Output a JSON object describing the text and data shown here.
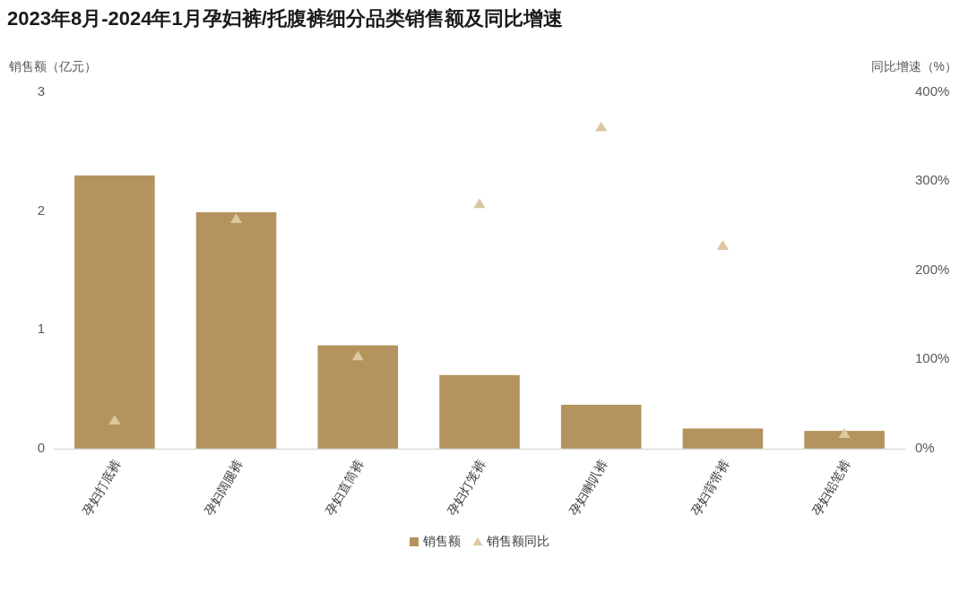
{
  "chart_data": {
    "type": "bar",
    "title": "2023年8月-2024年1月孕妇裤/托腹裤细分品类销售额及同比增速",
    "ylabel": "销售额（亿元）",
    "y2label": "同比增速（%）",
    "categories": [
      "孕妇打底裤",
      "孕妇阔腿裤",
      "孕妇直筒裤",
      "孕妇灯笼裤",
      "孕妇喇叭裤",
      "孕妇背带裤",
      "孕妇铅笔裤"
    ],
    "series": [
      {
        "name": "销售额",
        "color": "#b5935f",
        "values": [
          2.3,
          1.99,
          0.87,
          0.62,
          0.37,
          0.17,
          0.15
        ]
      },
      {
        "name": "销售额同比",
        "type": "scatter",
        "axis": "y2",
        "marker": "triangle",
        "color": "#dcc79e",
        "values": [
          32,
          258,
          104,
          275,
          361,
          228,
          17
        ]
      }
    ],
    "ylim": [
      0,
      3
    ],
    "yticks": [
      0,
      1,
      2,
      3
    ],
    "y2lim": [
      0,
      400
    ],
    "y2ticks": [
      {
        "value": 0,
        "label": "0%"
      },
      {
        "value": 100,
        "label": "100%"
      },
      {
        "value": 200,
        "label": "200%"
      },
      {
        "value": 300,
        "label": "300%"
      },
      {
        "value": 400,
        "label": "400%"
      }
    ],
    "grid": false,
    "legend": "bottom"
  }
}
